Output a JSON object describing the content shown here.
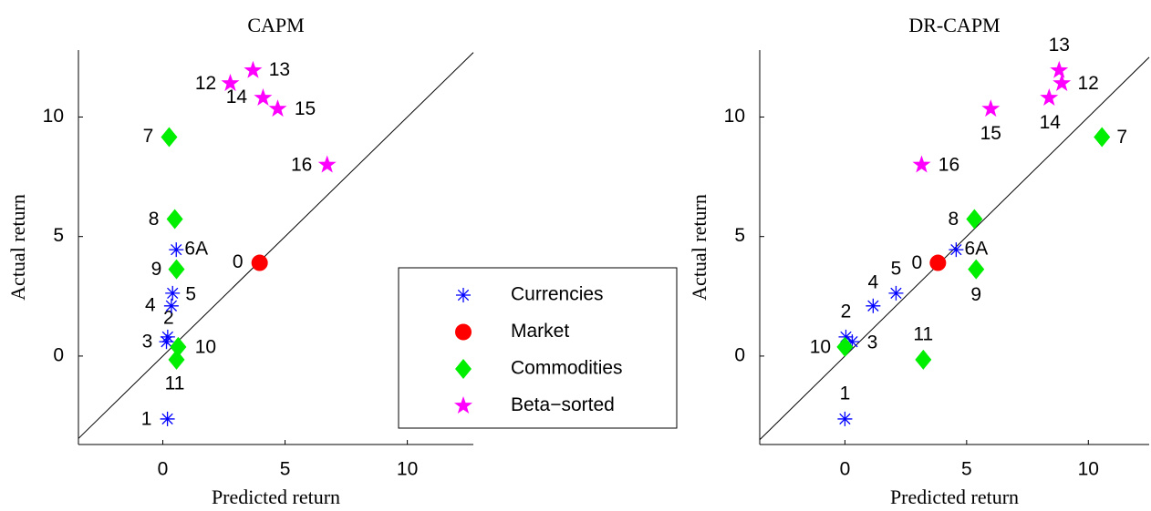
{
  "chart_data": [
    {
      "type": "scatter",
      "title": "CAPM",
      "x_label": "Predicted return",
      "y_label": "Actual return",
      "xlim": [
        -3.45,
        12.7
      ],
      "ylim": [
        -3.7,
        12.8
      ],
      "xticks": [
        0,
        5,
        10
      ],
      "yticks": [
        0,
        5,
        10
      ],
      "legend": "lower right",
      "series": [
        {
          "name": "Currencies",
          "color": "#0000ff",
          "marker": "asterisk",
          "labels": [
            "1",
            "2",
            "3",
            "4",
            "5",
            "6A"
          ],
          "x": [
            0.19,
            0.2,
            0.15,
            0.35,
            0.4,
            0.55
          ],
          "y": [
            -2.63,
            0.8,
            0.6,
            2.1,
            2.63,
            4.45
          ]
        },
        {
          "name": "Market",
          "color": "#ff0000",
          "marker": "circle",
          "labels": [
            "0"
          ],
          "x": [
            3.96
          ],
          "y": [
            3.9
          ]
        },
        {
          "name": "Commodities",
          "color": "#00ee00",
          "marker": "diamond",
          "labels": [
            "7",
            "8",
            "9",
            "10",
            "11"
          ],
          "x": [
            0.26,
            0.49,
            0.56,
            0.63,
            0.56
          ],
          "y": [
            9.16,
            5.73,
            3.63,
            0.38,
            -0.15
          ]
        },
        {
          "name": "Beta−sorted",
          "color": "#ff00ff",
          "marker": "star",
          "labels": [
            "12",
            "13",
            "14",
            "15",
            "16"
          ],
          "x": [
            2.76,
            3.69,
            4.1,
            4.7,
            6.72
          ],
          "y": [
            11.41,
            11.95,
            10.8,
            10.34,
            8.0
          ]
        }
      ]
    },
    {
      "type": "scatter",
      "title": "DR-CAPM",
      "x_label": "Predicted return",
      "y_label": "Actual return",
      "xlim": [
        -3.5,
        12.5
      ],
      "ylim": [
        -3.7,
        12.8
      ],
      "xticks": [
        0,
        5,
        10
      ],
      "yticks": [
        0,
        5,
        10
      ],
      "series": [
        {
          "color": "#0000ff",
          "marker": "asterisk",
          "labels": [
            "1",
            "2",
            "3",
            "4",
            "5",
            "6A"
          ],
          "x": [
            0.0,
            0.04,
            0.3,
            1.16,
            2.1,
            4.57
          ],
          "y": [
            -2.63,
            0.8,
            0.6,
            2.1,
            2.63,
            4.45
          ]
        },
        {
          "color": "#ff0000",
          "marker": "circle",
          "labels": [
            "0"
          ],
          "x": [
            3.82
          ],
          "y": [
            3.9
          ]
        },
        {
          "color": "#00ee00",
          "marker": "diamond",
          "labels": [
            "7",
            "8",
            "9",
            "10",
            "11"
          ],
          "x": [
            10.56,
            5.32,
            5.39,
            0.0,
            3.22
          ],
          "y": [
            9.16,
            5.73,
            3.63,
            0.38,
            -0.15
          ]
        },
        {
          "color": "#ff00ff",
          "marker": "star",
          "labels": [
            "12",
            "13",
            "14",
            "15",
            "16"
          ],
          "x": [
            8.91,
            8.8,
            8.39,
            5.99,
            3.15
          ],
          "y": [
            11.41,
            11.95,
            10.8,
            10.34,
            8.0
          ]
        }
      ]
    }
  ]
}
